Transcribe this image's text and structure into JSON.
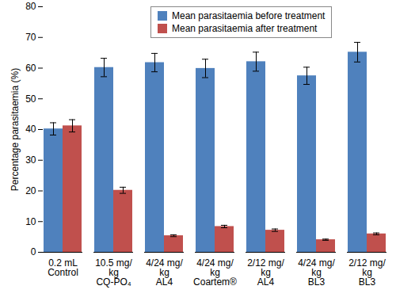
{
  "chart_data": {
    "type": "bar",
    "y_label": "Percentage parasitaemia (%)",
    "categories": [
      "0.2 mL\nControl",
      "10.5 mg/\nkg\nCQ-PO₄",
      "4/24 mg/\nkg\nAL4",
      "4/24 mg/\nkg\nCoartem®",
      "2/12 mg/\nkg\nAL4",
      "4/24 mg/\nkg\nBL3",
      "2/12 mg/\nkg\nBL3"
    ],
    "series": [
      {
        "name": "Mean parasitaemia before treatment",
        "color": "#4f81bd",
        "values": [
          40.2,
          60.2,
          61.8,
          59.9,
          62.1,
          57.5,
          65.2
        ],
        "errors": [
          2.0,
          3.0,
          3.0,
          3.0,
          3.1,
          2.8,
          3.2
        ]
      },
      {
        "name": "Mean parasitaemia after treatment",
        "color": "#c0504d",
        "values": [
          41.2,
          20.2,
          5.4,
          8.4,
          7.2,
          4.1,
          6.0
        ],
        "errors": [
          2.0,
          1.0,
          0.3,
          0.4,
          0.4,
          0.2,
          0.3
        ]
      }
    ],
    "ylim": [
      0,
      80
    ],
    "yticks": [
      0,
      10,
      20,
      30,
      40,
      50,
      60,
      70,
      80
    ],
    "grid": false,
    "legend": "top"
  }
}
